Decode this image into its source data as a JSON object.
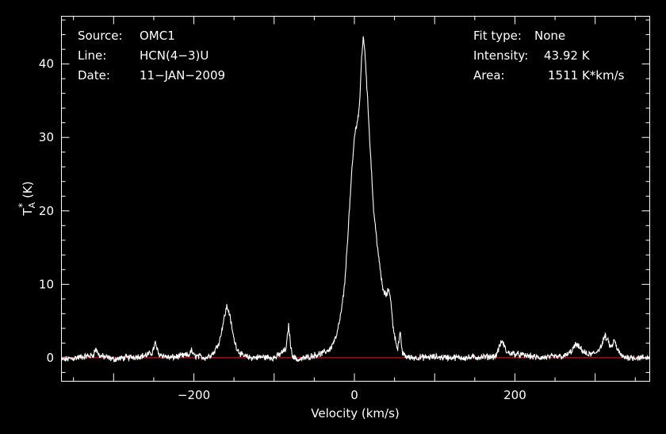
{
  "chart_data": {
    "type": "line",
    "xlabel": "Velocity (km/s)",
    "ylabel": "T",
    "ylabel_sup": "*",
    "ylabel_sub": "A",
    "ylabel_unit": "(K)",
    "xlim": [
      -365,
      368
    ],
    "ylim": [
      -3.2,
      46.5
    ],
    "x_ticks": [
      -200,
      0,
      200
    ],
    "x_tick_labels": [
      "−200",
      "0",
      "200"
    ],
    "y_ticks": [
      0,
      10,
      20,
      30,
      40
    ],
    "y_tick_labels": [
      "0",
      "10",
      "20",
      "30",
      "40"
    ],
    "grid": false,
    "baseline_value": 0,
    "colors": {
      "background": "#000000",
      "spectrum": "#ffffff",
      "baseline": "#e0202a",
      "frame": "#ffffff"
    },
    "series": [
      {
        "x": [
          -365,
          -340,
          -326,
          -322,
          -318,
          -300,
          -260,
          -252,
          -248,
          -244,
          -230,
          -206,
          -203,
          -200,
          -185,
          -175,
          -168,
          -163,
          -159,
          -156,
          -153,
          -150,
          -146,
          -140,
          -130,
          -115,
          -100,
          -95,
          -85,
          -82,
          -79,
          -76,
          -70,
          -55,
          -40,
          -30,
          -22,
          -16,
          -12,
          -8,
          -4,
          0,
          3,
          5,
          7,
          9,
          11,
          13,
          15,
          18,
          21,
          24,
          28,
          32,
          36,
          40,
          43,
          45,
          48,
          51,
          54,
          57,
          60,
          64,
          70,
          100,
          140,
          176,
          180,
          184,
          190,
          230,
          262,
          270,
          276,
          282,
          290,
          300,
          308,
          312,
          316,
          320,
          324,
          328,
          334,
          350,
          368
        ],
        "y": [
          -0.3,
          0.1,
          0.3,
          1.2,
          0.3,
          -0.2,
          0.3,
          0.7,
          2.0,
          0.5,
          0.0,
          0.4,
          1.0,
          0.3,
          0.0,
          0.7,
          2.3,
          5.0,
          7.0,
          6.2,
          4.3,
          2.5,
          1.2,
          0.3,
          0.0,
          0.1,
          0.0,
          0.3,
          1.2,
          4.5,
          1.2,
          0.1,
          -0.3,
          0.2,
          0.6,
          1.2,
          3.0,
          6.5,
          10.0,
          17.0,
          24.0,
          30.0,
          32.0,
          33.0,
          35.5,
          41.0,
          43.5,
          42.0,
          38.0,
          32.0,
          26.0,
          20.0,
          16.0,
          12.0,
          9.0,
          8.5,
          9.5,
          8.0,
          4.5,
          2.5,
          1.2,
          3.3,
          0.6,
          0.2,
          0.0,
          0.1,
          0.0,
          0.2,
          1.3,
          2.3,
          0.7,
          0.0,
          0.2,
          0.8,
          1.8,
          1.2,
          0.4,
          0.6,
          1.6,
          3.0,
          2.2,
          1.3,
          2.4,
          1.0,
          0.1,
          0.0,
          0.0
        ]
      }
    ],
    "annotations_left": [
      {
        "key": "Source:",
        "value": "OMC1"
      },
      {
        "key": "Line:",
        "value": "HCN(4−3)U"
      },
      {
        "key": "Date:",
        "value": "11−JAN−2009"
      }
    ],
    "annotations_right": [
      {
        "key": "Fit type:",
        "value": "None"
      },
      {
        "key": "Intensity:",
        "value": "43.92 K"
      },
      {
        "key": "Area:",
        "value": "1511 K*km/s"
      }
    ]
  }
}
